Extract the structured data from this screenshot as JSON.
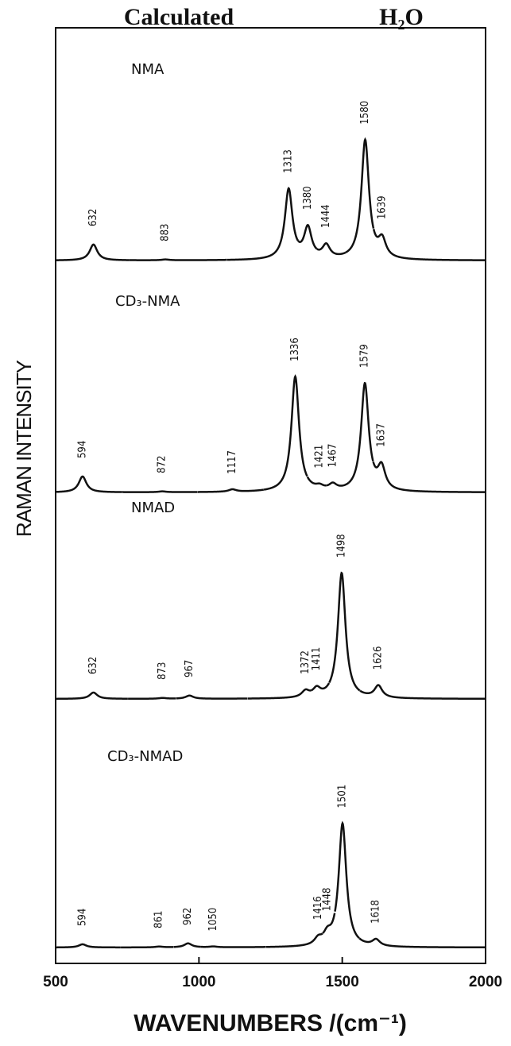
{
  "chart_data": {
    "type": "line",
    "titles": [
      "Calculated",
      "H₂O"
    ],
    "x_label": "WAVENUMBERS /(cm⁻¹)",
    "y_label": "RAMAN INTENSITY",
    "xlim": [
      500,
      2000
    ],
    "xticks": [
      500,
      1000,
      1500,
      2000
    ],
    "panels": [
      {
        "name": "NMA",
        "color": "#111111",
        "x": [
          632,
          883,
          1313,
          1380,
          1444,
          1580,
          1639
        ],
        "values": [
          20,
          1,
          88,
          38,
          16,
          150,
          22
        ]
      },
      {
        "name": "CD₃-NMA",
        "color": "#111111",
        "x": [
          594,
          872,
          1117,
          1336,
          1421,
          1467,
          1579,
          1637
        ],
        "values": [
          20,
          1,
          3,
          145,
          4,
          7,
          135,
          28
        ]
      },
      {
        "name": "NMAD",
        "color": "#111111",
        "x": [
          632,
          873,
          967,
          1372,
          1411,
          1498,
          1626
        ],
        "values": [
          8,
          1,
          4,
          8,
          10,
          158,
          15
        ]
      },
      {
        "name": "CD₃-NMAD",
        "color": "#111111",
        "x": [
          594,
          861,
          962,
          1050,
          1416,
          1448,
          1501,
          1618
        ],
        "values": [
          4,
          1,
          5,
          1,
          8,
          12,
          155,
          8
        ]
      }
    ]
  }
}
